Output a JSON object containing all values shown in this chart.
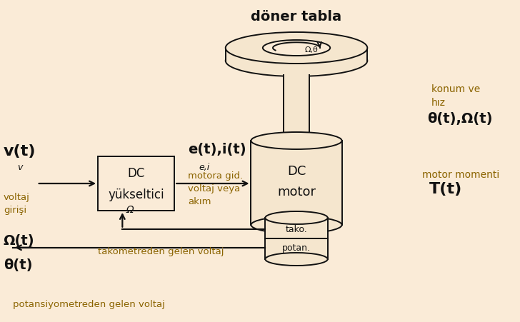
{
  "bg_color": "#faebd7",
  "title": "döner tabla",
  "konum_text": "konum ve\nhız",
  "theta_omega_text": "θ(t),Ω(t)",
  "motor_momenti_text": "motor momenti",
  "Tt_text": "T(t)",
  "vt_text": "v(t)",
  "v_text": "v",
  "voltaj_girisi_text": "voltaj\ngirişi",
  "dc_yukseltici_text": "DC\nyükseltici",
  "et_it_text": "e(t),i(t)",
  "ei_text": "e,i",
  "motora_gid_text": "motora gid.\nvoltaj veya\nakım",
  "dc_motor_text": "DC\nmotor",
  "omega_sym": "Ω",
  "omega_t_text": "Ω(t)",
  "tako_text": "tako.",
  "potan_text": "potan.",
  "theta_t_text": "θ(t)",
  "takometreden_text": "takometreden gelen voltaj",
  "potansiyometreden_text": "potansiyometreden gelen voltaj",
  "omega_theta_label": "Ω,θ"
}
